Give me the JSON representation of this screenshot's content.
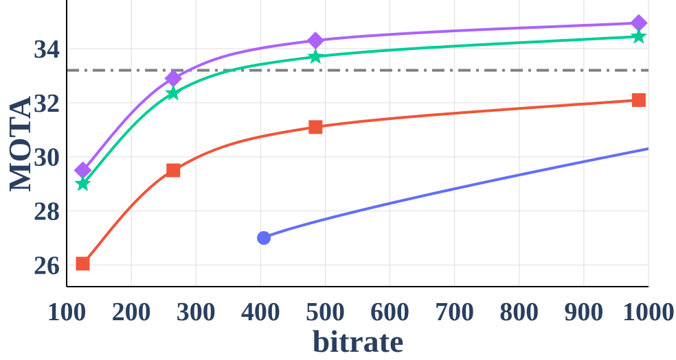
{
  "chart_data": {
    "type": "line",
    "xlabel": "bitrate",
    "ylabel": "MOTA",
    "xlim": [
      100,
      1000
    ],
    "ylim": [
      25.2,
      35.8
    ],
    "x_ticks": [
      100,
      200,
      300,
      400,
      500,
      600,
      700,
      800,
      900,
      1000
    ],
    "y_ticks": [
      26,
      28,
      30,
      32,
      34
    ],
    "grid": true,
    "series": [
      {
        "color": "#ab63fa",
        "marker": "diamond",
        "smooth": true,
        "x": [
          125,
          265,
          485,
          985
        ],
        "y": [
          29.5,
          32.9,
          34.3,
          34.95
        ]
      },
      {
        "color": "#00cc96",
        "marker": "star",
        "smooth": true,
        "x": [
          125,
          265,
          485,
          985
        ],
        "y": [
          29.0,
          32.35,
          33.7,
          34.45
        ]
      },
      {
        "color": "#ef553b",
        "marker": "square",
        "smooth": true,
        "x": [
          125,
          265,
          485,
          985
        ],
        "y": [
          26.05,
          29.5,
          31.1,
          32.1
        ]
      },
      {
        "color": "#636efa",
        "marker": "circle",
        "curve": "power",
        "x": [
          405,
          1000
        ],
        "y": [
          27.0,
          30.3
        ],
        "marker_points": [
          0
        ]
      }
    ],
    "reference_lines": [
      {
        "y": 33.2,
        "color": "#808080",
        "style": "dashdot"
      }
    ]
  }
}
